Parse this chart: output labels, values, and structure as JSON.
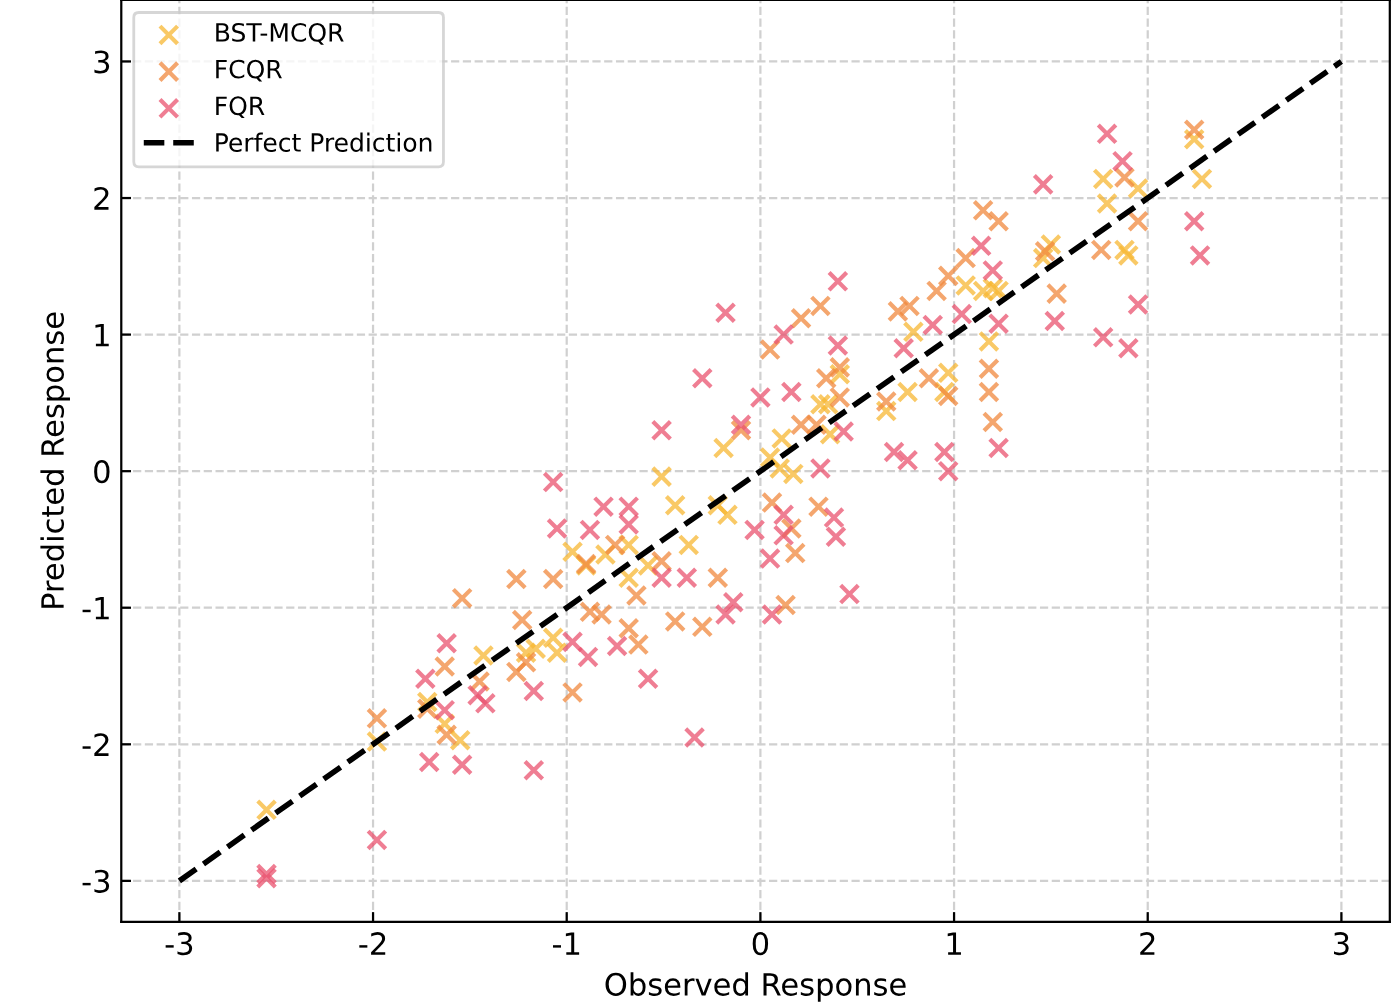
{
  "chart_data": {
    "type": "scatter",
    "xlabel": "Observed Response",
    "ylabel": "Predicted Response",
    "xlim": [
      -3.3,
      3.25
    ],
    "ylim": [
      -3.3,
      3.45
    ],
    "xticks": [
      -3,
      -2,
      -1,
      0,
      1,
      2,
      3
    ],
    "yticks": [
      -3,
      -2,
      -1,
      0,
      1,
      2,
      3
    ],
    "grid": true,
    "legend": "top left",
    "marker": "cross",
    "series": [
      {
        "name": "BST-MCQR",
        "color": "#f7b733",
        "x": [
          -2.55,
          -1.98,
          -1.55,
          -1.63,
          -1.72,
          -1.43,
          -1.05,
          -1.07,
          -1.16,
          -1.21,
          -0.97,
          -0.9,
          -0.8,
          -0.68,
          -0.68,
          -0.58,
          -0.44,
          -0.37,
          -0.22,
          -0.17,
          -0.19,
          -0.51,
          0.05,
          0.1,
          0.17,
          0.31,
          0.41,
          0.36,
          0.11,
          0.35,
          0.65,
          0.76,
          0.95,
          0.97,
          0.79,
          1.18,
          1.15,
          1.06,
          1.23,
          1.2,
          1.46,
          1.5,
          1.88,
          1.9,
          1.95,
          1.79,
          1.77,
          2.28,
          2.24
        ],
        "values": [
          -2.48,
          -1.98,
          -1.97,
          -1.85,
          -1.69,
          -1.35,
          -1.33,
          -1.22,
          -1.3,
          -1.33,
          -0.59,
          -0.69,
          -0.61,
          -0.54,
          -0.78,
          -0.69,
          -0.25,
          -0.54,
          -0.25,
          -0.32,
          0.17,
          -0.04,
          0.1,
          0.02,
          -0.02,
          0.49,
          0.71,
          0.27,
          0.24,
          0.49,
          0.44,
          0.58,
          0.58,
          0.72,
          1.02,
          0.95,
          1.32,
          1.36,
          1.32,
          1.34,
          1.56,
          1.66,
          1.62,
          1.58,
          2.07,
          1.96,
          2.14,
          2.14,
          2.43
        ]
      },
      {
        "name": "FCQR",
        "color": "#f0883e",
        "x": [
          -1.98,
          -1.54,
          -1.63,
          -1.62,
          -1.26,
          -1.23,
          -1.26,
          -0.97,
          -1.07,
          -0.88,
          -0.82,
          -0.68,
          -0.63,
          -0.44,
          -0.3,
          -0.22,
          -0.51,
          -0.64,
          -0.75,
          -0.9,
          -1.72,
          -1.21,
          -1.45,
          -0.1,
          0.06,
          0.3,
          0.16,
          0.18,
          0.13,
          0.05,
          0.21,
          0.31,
          0.34,
          0.41,
          0.41,
          0.29,
          0.21,
          0.65,
          0.87,
          0.97,
          0.71,
          0.77,
          0.91,
          0.97,
          1.06,
          1.18,
          1.18,
          1.2,
          1.15,
          1.23,
          1.47,
          1.53,
          1.76,
          1.88,
          1.95,
          2.24
        ],
        "values": [
          -1.81,
          -0.93,
          -1.43,
          -1.93,
          -0.79,
          -1.09,
          -1.47,
          -1.62,
          -0.79,
          -1.03,
          -1.05,
          -1.15,
          -1.27,
          -1.1,
          -1.14,
          -0.78,
          -0.66,
          -0.91,
          -0.54,
          -0.68,
          -1.74,
          -1.4,
          -1.54,
          0.3,
          -0.23,
          -0.26,
          -0.42,
          -0.6,
          -0.98,
          0.89,
          1.12,
          1.21,
          0.68,
          0.76,
          0.54,
          0.34,
          0.34,
          0.51,
          0.68,
          0.55,
          1.17,
          1.21,
          1.32,
          1.43,
          1.56,
          0.75,
          0.58,
          0.36,
          1.91,
          1.83,
          1.61,
          1.3,
          1.62,
          2.15,
          1.83,
          2.5
        ]
      },
      {
        "name": "FQR",
        "color": "#e9536f",
        "x": [
          -2.55,
          -2.55,
          -1.98,
          -1.71,
          -1.54,
          -1.17,
          -0.34,
          -1.73,
          -1.62,
          -1.46,
          -1.42,
          -1.17,
          -1.63,
          -0.97,
          -0.89,
          -0.74,
          -0.58,
          -0.18,
          -0.14,
          -1.05,
          -0.81,
          -0.68,
          -0.68,
          -0.88,
          -0.51,
          -0.38,
          -1.07,
          -0.18,
          -0.3,
          -0.51,
          -0.03,
          0.05,
          0.12,
          0.12,
          0.38,
          0.39,
          0.46,
          0.06,
          0.12,
          0.0,
          0.16,
          0.4,
          0.4,
          0.43,
          0.31,
          -0.1,
          0.69,
          0.76,
          0.95,
          0.97,
          0.74,
          0.89,
          1.04,
          1.23,
          1.14,
          1.2,
          1.23,
          1.52,
          1.46,
          1.77,
          1.79,
          1.87,
          1.9,
          1.95,
          2.24,
          2.27
        ],
        "values": [
          -2.98,
          -2.95,
          -2.7,
          -2.13,
          -2.15,
          -2.19,
          -1.95,
          -1.52,
          -1.26,
          -1.64,
          -1.7,
          -1.61,
          -1.75,
          -1.25,
          -1.36,
          -1.28,
          -1.52,
          -1.05,
          -0.96,
          -0.42,
          -0.26,
          -0.26,
          -0.39,
          -0.43,
          -0.78,
          -0.78,
          -0.08,
          1.16,
          0.68,
          0.3,
          -0.43,
          -0.64,
          -0.32,
          -0.47,
          -0.34,
          -0.48,
          -0.9,
          -1.05,
          1.0,
          0.54,
          0.58,
          1.39,
          0.92,
          0.29,
          0.02,
          0.34,
          0.14,
          0.08,
          0.14,
          0.0,
          0.9,
          1.07,
          1.15,
          0.17,
          1.65,
          1.47,
          1.08,
          1.1,
          2.1,
          0.98,
          2.47,
          2.27,
          0.9,
          1.22,
          1.83,
          1.58
        ]
      },
      {
        "name": "Perfect Prediction",
        "type": "line",
        "color": "#000000",
        "line_style": "dashed",
        "marker": "none",
        "x": [
          -3,
          3
        ],
        "values": [
          -3,
          3
        ]
      }
    ]
  }
}
